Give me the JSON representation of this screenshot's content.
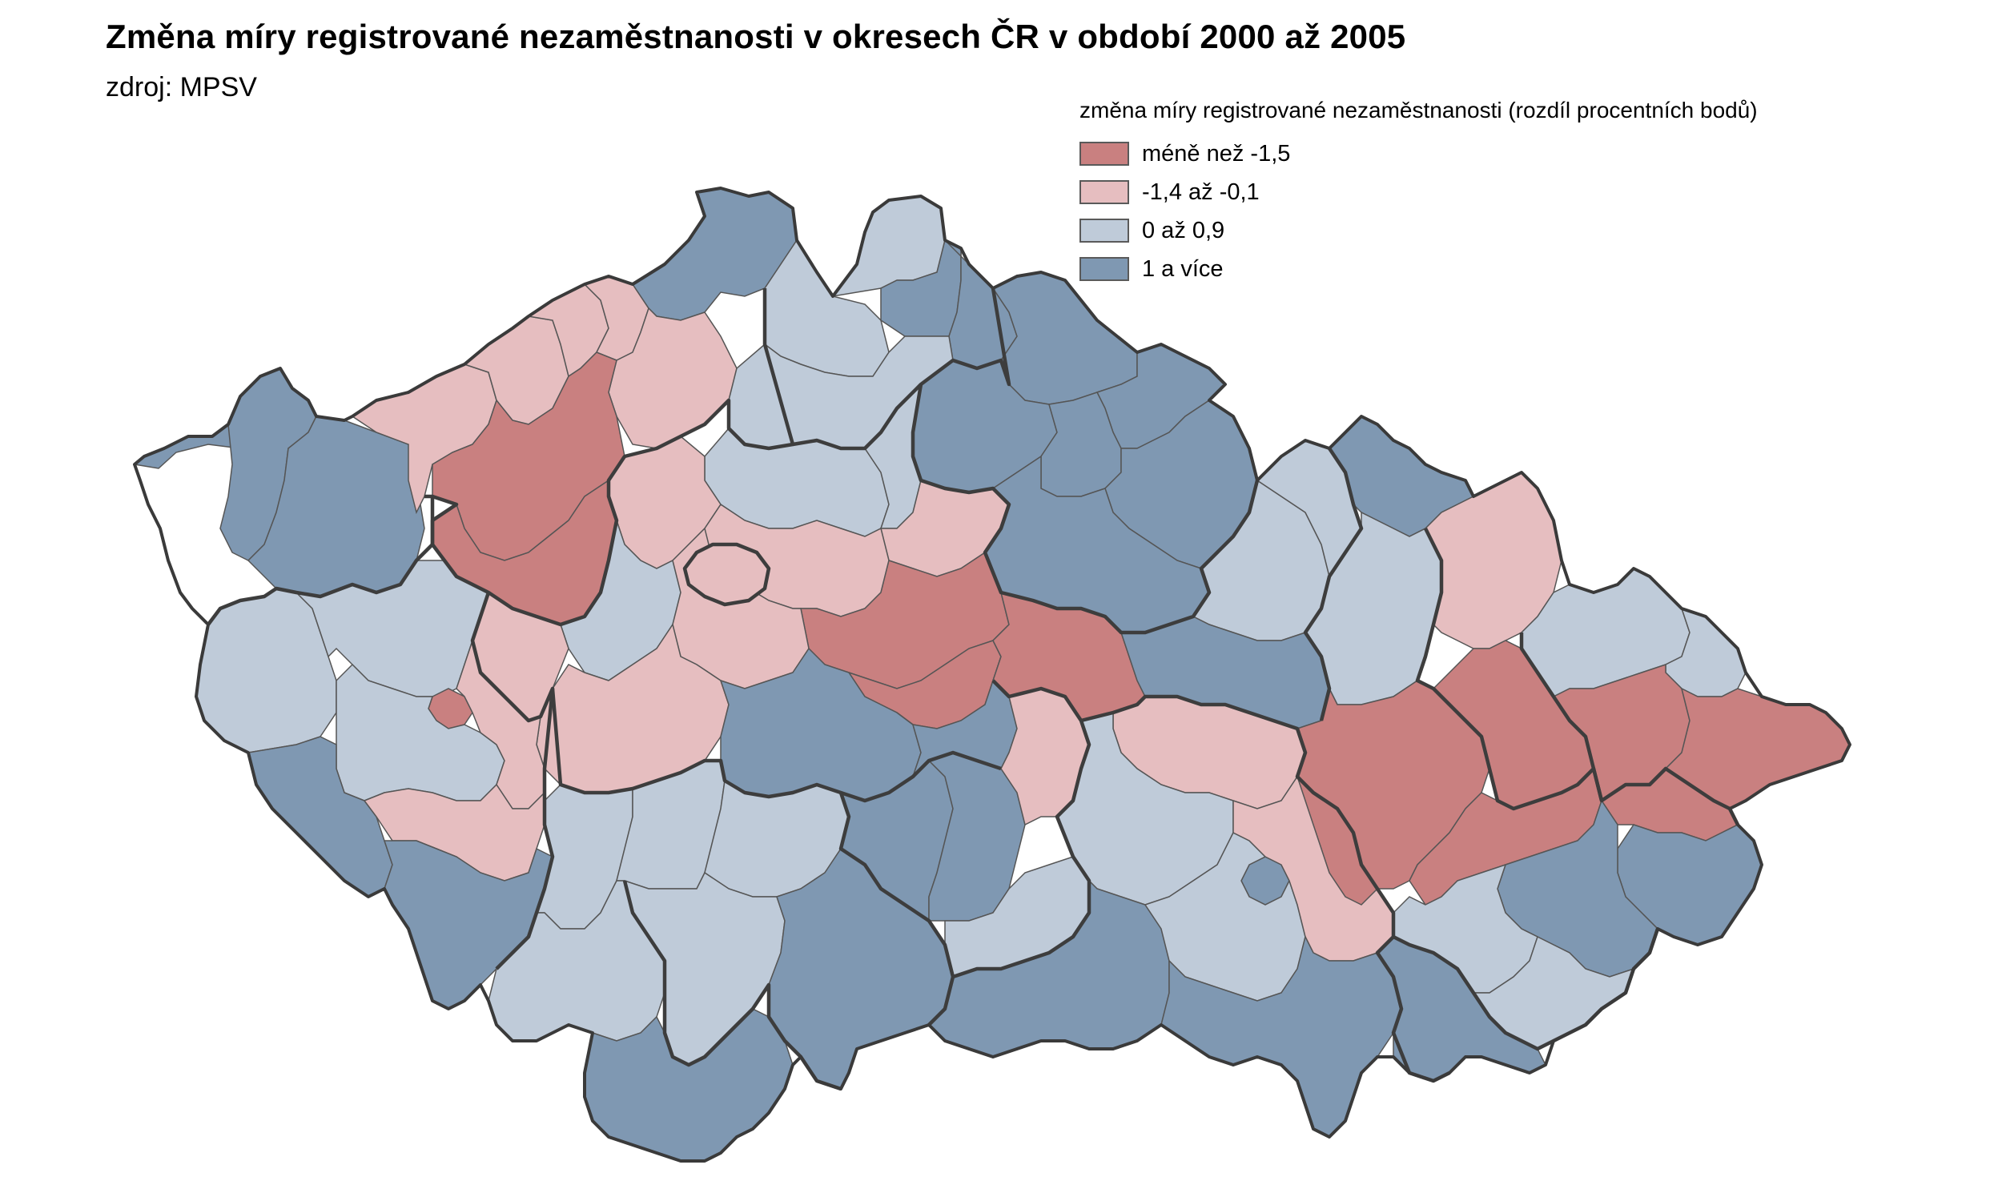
{
  "title": "Změna míry registrované nezaměstnanosti v okresech ČR v období 2000 až 2005",
  "source": "zdroj: MPSV",
  "legend": {
    "title": "změna míry registrované nezaměstnanosti (rozdíl procentních bodů)",
    "classes": [
      {
        "key": "c1",
        "label": "méně než -1,5",
        "color": "#c98080"
      },
      {
        "key": "c2",
        "label": "-1,4 až -0,1",
        "color": "#e6bec0"
      },
      {
        "key": "c3",
        "label": "0 až 0,9",
        "color": "#bfcbd9"
      },
      {
        "key": "c4",
        "label": "1 a více",
        "color": "#7f98b2"
      }
    ]
  },
  "colors": {
    "district_border": "#555555",
    "region_border": "#3d3d3d",
    "background": "#ffffff"
  }
}
